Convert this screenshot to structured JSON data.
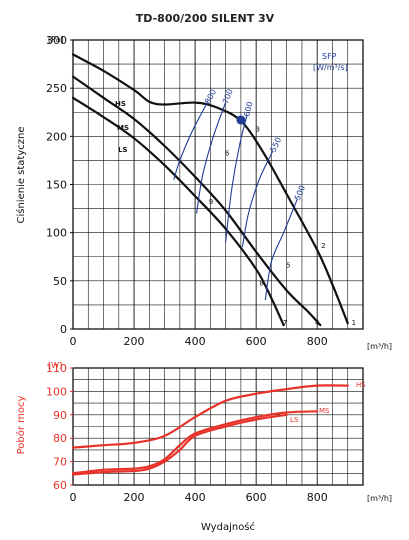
{
  "chart_data": [
    {
      "type": "line",
      "title": "TD-800/200 SILENT 3V",
      "ylabel": "Ciśnienie statyczne",
      "y_unit": "[Pa]",
      "x_unit": "[m³/h]",
      "xlim": [
        0,
        950
      ],
      "ylim": [
        0,
        300
      ],
      "x_ticks": [
        "0",
        "200",
        "400",
        "600",
        "800"
      ],
      "y_ticks": [
        "0",
        "50",
        "100",
        "150",
        "200",
        "250",
        "300"
      ],
      "grid": true,
      "series": [
        {
          "name": "HS",
          "color": "#111111",
          "x": [
            0,
            100,
            200,
            250,
            300,
            400,
            470,
            550,
            620,
            700,
            800,
            850,
            900
          ],
          "y": [
            285,
            268,
            248,
            236,
            233,
            235,
            230,
            216,
            185,
            140,
            82,
            46,
            6
          ]
        },
        {
          "name": "MS",
          "color": "#111111",
          "x": [
            0,
            100,
            200,
            300,
            400,
            500,
            600,
            700,
            770,
            810
          ],
          "y": [
            262,
            240,
            218,
            190,
            158,
            123,
            80,
            40,
            18,
            4
          ]
        },
        {
          "name": "LS",
          "color": "#111111",
          "x": [
            0,
            100,
            200,
            300,
            400,
            500,
            600,
            650,
            690
          ],
          "y": [
            240,
            220,
            198,
            170,
            138,
            104,
            62,
            32,
            4
          ]
        }
      ],
      "sfp_label": "SFP",
      "sfp_unit": "[W/m³/s]",
      "sfp_color": "#1f3c96",
      "sfp_curves": [
        {
          "label": "800",
          "x": [
            330,
            350,
            390,
            440
          ],
          "y": [
            155,
            175,
            205,
            235
          ]
        },
        {
          "label": "700",
          "x": [
            405,
            425,
            460,
            500
          ],
          "y": [
            120,
            160,
            200,
            235
          ]
        },
        {
          "label": "600",
          "x": [
            500,
            520,
            545,
            570
          ],
          "y": [
            90,
            145,
            190,
            222
          ]
        },
        {
          "label": "550",
          "x": [
            555,
            575,
            610,
            655
          ],
          "y": [
            85,
            120,
            155,
            185
          ]
        },
        {
          "label": "500",
          "x": [
            630,
            650,
            690,
            735
          ],
          "y": [
            30,
            70,
            100,
            135
          ]
        }
      ],
      "operating_point": {
        "x": 550,
        "y": 217,
        "color": "#1f3c96"
      },
      "point_labels": [
        {
          "label": "1",
          "x": 920,
          "y": 4
        },
        {
          "label": "2",
          "x": 820,
          "y": 84
        },
        {
          "label": "3",
          "x": 605,
          "y": 205
        },
        {
          "label": "4",
          "x": 800,
          "y": 4
        },
        {
          "label": "5",
          "x": 705,
          "y": 64
        },
        {
          "label": "6",
          "x": 505,
          "y": 180
        },
        {
          "label": "7",
          "x": 695,
          "y": 4
        },
        {
          "label": "8",
          "x": 618,
          "y": 45
        },
        {
          "label": "9",
          "x": 452,
          "y": 130
        }
      ]
    },
    {
      "type": "line",
      "ylabel": "Pobór mocy",
      "y_unit": "[W]",
      "x_unit": "[m³/h]",
      "xlabel": "Wydajność",
      "xlim": [
        0,
        950
      ],
      "ylim": [
        60,
        110
      ],
      "x_ticks": [
        "0",
        "200",
        "400",
        "600",
        "800"
      ],
      "y_ticks": [
        "60",
        "70",
        "80",
        "90",
        "100",
        "110"
      ],
      "grid": true,
      "series": [
        {
          "name": "HS",
          "color": "#e8332a",
          "x": [
            0,
            100,
            200,
            300,
            400,
            500,
            600,
            700,
            800,
            900
          ],
          "y": [
            76,
            77,
            78,
            81,
            89,
            96,
            99,
            101,
            102.5,
            102.5
          ]
        },
        {
          "name": "MS",
          "color": "#e8332a",
          "x": [
            0,
            100,
            200,
            250,
            300,
            350,
            400,
            500,
            600,
            700,
            800
          ],
          "y": [
            65,
            66.5,
            67,
            68,
            71,
            77,
            82,
            86,
            89,
            91,
            91.5
          ]
        },
        {
          "name": "LS",
          "color": "#e8332a",
          "x": [
            0,
            100,
            200,
            250,
            300,
            350,
            400,
            500,
            600,
            700
          ],
          "y": [
            64.5,
            65.5,
            66,
            67,
            70,
            75,
            81,
            85,
            88,
            90
          ]
        }
      ]
    }
  ]
}
